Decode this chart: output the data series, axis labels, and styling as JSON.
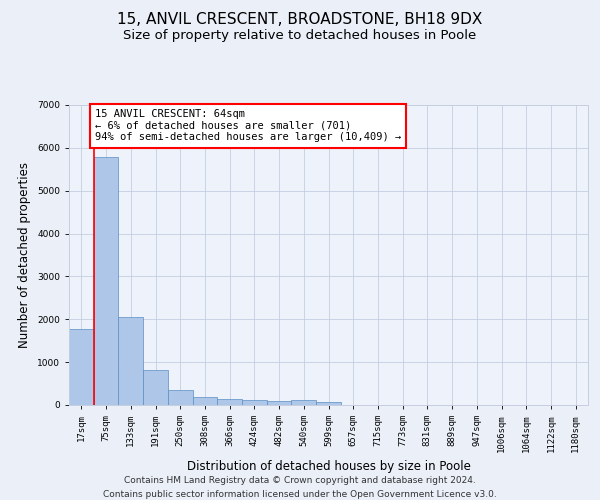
{
  "title1": "15, ANVIL CRESCENT, BROADSTONE, BH18 9DX",
  "title2": "Size of property relative to detached houses in Poole",
  "xlabel": "Distribution of detached houses by size in Poole",
  "ylabel": "Number of detached properties",
  "categories": [
    "17sqm",
    "75sqm",
    "133sqm",
    "191sqm",
    "250sqm",
    "308sqm",
    "366sqm",
    "424sqm",
    "482sqm",
    "540sqm",
    "599sqm",
    "657sqm",
    "715sqm",
    "773sqm",
    "831sqm",
    "889sqm",
    "947sqm",
    "1006sqm",
    "1064sqm",
    "1122sqm",
    "1180sqm"
  ],
  "values": [
    1780,
    5780,
    2060,
    820,
    340,
    190,
    130,
    110,
    100,
    110,
    80,
    0,
    0,
    0,
    0,
    0,
    0,
    0,
    0,
    0,
    0
  ],
  "bar_color": "#aec6e8",
  "bar_edge_color": "#5b8ec4",
  "red_line_x": 0.5,
  "annotation_text": "15 ANVIL CRESCENT: 64sqm\n← 6% of detached houses are smaller (701)\n94% of semi-detached houses are larger (10,409) →",
  "annotation_box_color": "white",
  "annotation_box_edge_color": "red",
  "ylim": [
    0,
    7000
  ],
  "yticks": [
    0,
    1000,
    2000,
    3000,
    4000,
    5000,
    6000,
    7000
  ],
  "footnote1": "Contains HM Land Registry data © Crown copyright and database right 2024.",
  "footnote2": "Contains public sector information licensed under the Open Government Licence v3.0.",
  "bg_color": "#eaeff8",
  "plot_bg_color": "#eef2fb",
  "grid_color": "#c5cfe0",
  "title1_fontsize": 11,
  "title2_fontsize": 9.5,
  "axis_label_fontsize": 8.5,
  "tick_fontsize": 6.5,
  "annotation_fontsize": 7.5,
  "footnote_fontsize": 6.5
}
